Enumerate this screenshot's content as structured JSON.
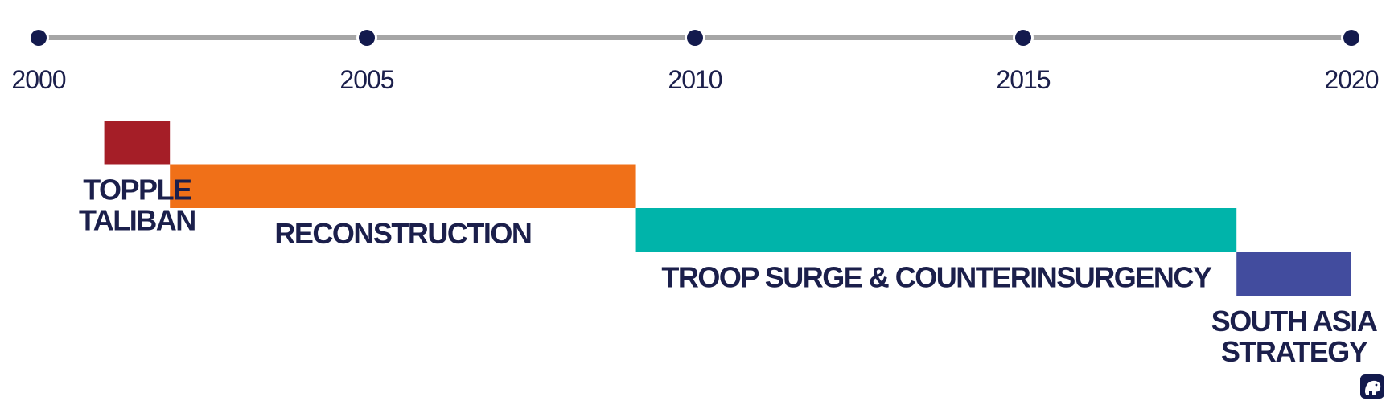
{
  "chart_data": {
    "type": "timeline",
    "title": "",
    "xlim": [
      2000,
      2020
    ],
    "ticks": [
      2000,
      2005,
      2010,
      2015,
      2020
    ],
    "tick_labels": [
      "2000",
      "2005",
      "2010",
      "2015",
      "2020"
    ],
    "axis_color": "#a6a6a6",
    "marker_color": "#131a4d",
    "label_color": "#1b1f4b",
    "phases": [
      {
        "lines": [
          "TOPPLE",
          "TALIBAN"
        ],
        "start": 2001.0,
        "end": 2002.0,
        "color": "#a51e27"
      },
      {
        "lines": [
          "RECONSTRUCTION"
        ],
        "start": 2002.0,
        "end": 2009.1,
        "color": "#f07018"
      },
      {
        "lines": [
          "TROOP SURGE & COUNTERINSURGENCY"
        ],
        "start": 2009.1,
        "end": 2018.25,
        "color": "#00b4aa"
      },
      {
        "lines": [
          "SOUTH ASIA",
          "STRATEGY"
        ],
        "start": 2018.25,
        "end": 2020.0,
        "color": "#424c9e"
      }
    ]
  },
  "logo": {
    "icon": "elephant-logo-icon",
    "color": "#131a4d"
  }
}
